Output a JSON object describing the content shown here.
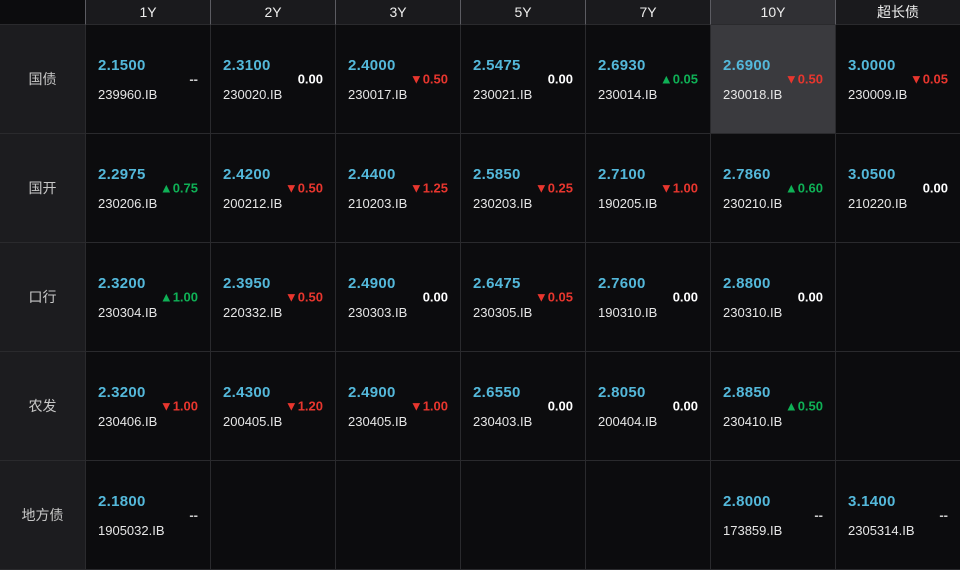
{
  "columns": [
    "1Y",
    "2Y",
    "3Y",
    "5Y",
    "7Y",
    "10Y",
    "超长债"
  ],
  "column_keys": [
    "1y",
    "2y",
    "3y",
    "5y",
    "7y",
    "10y",
    "ultra-long"
  ],
  "selected_column_index": 5,
  "colors": {
    "bg": "#0c0c0e",
    "header_bg": "#1a1a1d",
    "header_selected_bg": "#303034",
    "header_text": "#ededed",
    "header_sep": "#5c5c62",
    "grid_line": "#2a2a2d",
    "row_label_bg": "#1c1c1f",
    "row_label_text": "#c8c8c8",
    "cell_highlight_bg": "#3a3a3e",
    "yield": "#54b8da",
    "up": "#0fb156",
    "down": "#e8362e",
    "flat": "#ffffff",
    "none": "#cfcfcf",
    "code_text": "#e6e6e6"
  },
  "rows": [
    {
      "label": "国债",
      "key": "guozhai",
      "cells": [
        {
          "yield": "2.1500",
          "change": "--",
          "dir": "none",
          "code": "239960.IB"
        },
        {
          "yield": "2.3100",
          "change": "0.00",
          "dir": "flat",
          "code": "230020.IB"
        },
        {
          "yield": "2.4000",
          "change": "▼0.50",
          "dir": "down",
          "code": "230017.IB"
        },
        {
          "yield": "2.5475",
          "change": "0.00",
          "dir": "flat",
          "code": "230021.IB"
        },
        {
          "yield": "2.6930",
          "change": "▲0.05",
          "dir": "up",
          "code": "230014.IB"
        },
        {
          "yield": "2.6900",
          "change": "▼0.50",
          "dir": "down",
          "code": "230018.IB",
          "highlight": true
        },
        {
          "yield": "3.0000",
          "change": "▼0.05",
          "dir": "down",
          "code": "230009.IB"
        }
      ]
    },
    {
      "label": "国开",
      "key": "guokai",
      "cells": [
        {
          "yield": "2.2975",
          "change": "▲0.75",
          "dir": "up",
          "code": "230206.IB"
        },
        {
          "yield": "2.4200",
          "change": "▼0.50",
          "dir": "down",
          "code": "200212.IB"
        },
        {
          "yield": "2.4400",
          "change": "▼1.25",
          "dir": "down",
          "code": "210203.IB"
        },
        {
          "yield": "2.5850",
          "change": "▼0.25",
          "dir": "down",
          "code": "230203.IB"
        },
        {
          "yield": "2.7100",
          "change": "▼1.00",
          "dir": "down",
          "code": "190205.IB"
        },
        {
          "yield": "2.7860",
          "change": "▲0.60",
          "dir": "up",
          "code": "230210.IB"
        },
        {
          "yield": "3.0500",
          "change": "0.00",
          "dir": "flat",
          "code": "210220.IB"
        }
      ]
    },
    {
      "label": "口行",
      "key": "kouhang",
      "cells": [
        {
          "yield": "2.3200",
          "change": "▲1.00",
          "dir": "up",
          "code": "230304.IB"
        },
        {
          "yield": "2.3950",
          "change": "▼0.50",
          "dir": "down",
          "code": "220332.IB"
        },
        {
          "yield": "2.4900",
          "change": "0.00",
          "dir": "flat",
          "code": "230303.IB"
        },
        {
          "yield": "2.6475",
          "change": "▼0.05",
          "dir": "down",
          "code": "230305.IB"
        },
        {
          "yield": "2.7600",
          "change": "0.00",
          "dir": "flat",
          "code": "190310.IB"
        },
        {
          "yield": "2.8800",
          "change": "0.00",
          "dir": "flat",
          "code": "230310.IB"
        },
        null
      ]
    },
    {
      "label": "农发",
      "key": "nongfa",
      "cells": [
        {
          "yield": "2.3200",
          "change": "▼1.00",
          "dir": "down",
          "code": "230406.IB"
        },
        {
          "yield": "2.4300",
          "change": "▼1.20",
          "dir": "down",
          "code": "200405.IB"
        },
        {
          "yield": "2.4900",
          "change": "▼1.00",
          "dir": "down",
          "code": "230405.IB"
        },
        {
          "yield": "2.6550",
          "change": "0.00",
          "dir": "flat",
          "code": "230403.IB"
        },
        {
          "yield": "2.8050",
          "change": "0.00",
          "dir": "flat",
          "code": "200404.IB"
        },
        {
          "yield": "2.8850",
          "change": "▲0.50",
          "dir": "up",
          "code": "230410.IB"
        },
        null
      ]
    },
    {
      "label": "地方债",
      "key": "difangzhai",
      "cells": [
        {
          "yield": "2.1800",
          "change": "--",
          "dir": "none",
          "code": "1905032.IB"
        },
        null,
        null,
        null,
        null,
        {
          "yield": "2.8000",
          "change": "--",
          "dir": "none",
          "code": "173859.IB"
        },
        {
          "yield": "3.1400",
          "change": "--",
          "dir": "none",
          "code": "2305314.IB"
        }
      ]
    }
  ]
}
